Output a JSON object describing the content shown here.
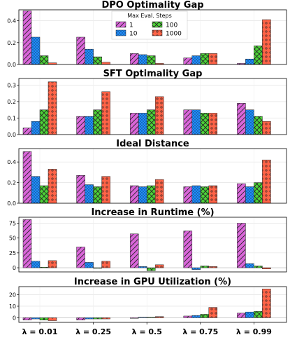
{
  "chart_data": [
    {
      "type": "bar",
      "title": "DPO Optimality Gap",
      "categories": [
        "λ = 0.01",
        "λ = 0.25",
        "λ = 0.5",
        "λ = 0.75",
        "λ = 0.99"
      ],
      "ylim": [
        0,
        0.5
      ],
      "yticks": [
        0,
        0.2,
        0.4
      ],
      "ytick_labels": [
        "0.0",
        "0.2",
        "0.4"
      ],
      "series": [
        {
          "name": "1",
          "values": [
            0.49,
            0.25,
            0.1,
            0.06,
            0.01
          ]
        },
        {
          "name": "10",
          "values": [
            0.25,
            0.14,
            0.09,
            0.08,
            0.05
          ]
        },
        {
          "name": "100",
          "values": [
            0.08,
            0.07,
            0.08,
            0.1,
            0.17
          ]
        },
        {
          "name": "1000",
          "values": [
            0.015,
            0.02,
            0.01,
            0.1,
            0.41
          ]
        }
      ],
      "legend": {
        "title": "Max Eval. Steps",
        "entries": [
          "1",
          "100",
          "10",
          "1000"
        ],
        "placement": "top-center"
      }
    },
    {
      "type": "bar",
      "title": "SFT Optimality Gap",
      "categories": [
        "λ = 0.01",
        "λ = 0.25",
        "λ = 0.5",
        "λ = 0.75",
        "λ = 0.99"
      ],
      "ylim": [
        0,
        0.34
      ],
      "yticks": [
        0,
        0.1,
        0.2,
        0.3
      ],
      "ytick_labels": [
        "0.0",
        "0.1",
        "0.2",
        "0.3"
      ],
      "series": [
        {
          "name": "1",
          "values": [
            0.04,
            0.11,
            0.13,
            0.15,
            0.19
          ]
        },
        {
          "name": "10",
          "values": [
            0.08,
            0.11,
            0.13,
            0.15,
            0.15
          ]
        },
        {
          "name": "100",
          "values": [
            0.15,
            0.15,
            0.15,
            0.13,
            0.11
          ]
        },
        {
          "name": "1000",
          "values": [
            0.32,
            0.26,
            0.23,
            0.13,
            0.08
          ]
        }
      ]
    },
    {
      "type": "bar",
      "title": "Ideal Distance",
      "categories": [
        "λ = 0.01",
        "λ = 0.25",
        "λ = 0.5",
        "λ = 0.75",
        "λ = 0.99"
      ],
      "ylim": [
        0,
        0.53
      ],
      "yticks": [
        0,
        0.2,
        0.4
      ],
      "ytick_labels": [
        "0.0",
        "0.2",
        "0.4"
      ],
      "series": [
        {
          "name": "1",
          "values": [
            0.5,
            0.27,
            0.17,
            0.16,
            0.19
          ]
        },
        {
          "name": "10",
          "values": [
            0.26,
            0.18,
            0.16,
            0.17,
            0.16
          ]
        },
        {
          "name": "100",
          "values": [
            0.17,
            0.16,
            0.17,
            0.16,
            0.2
          ]
        },
        {
          "name": "1000",
          "values": [
            0.33,
            0.26,
            0.23,
            0.17,
            0.42
          ]
        }
      ]
    },
    {
      "type": "bar",
      "title": "Increase in Runtime (%)",
      "categories": [
        "λ = 0.01",
        "λ = 0.25",
        "λ = 0.5",
        "λ = 0.75",
        "λ = 0.99"
      ],
      "ylim": [
        -7,
        85
      ],
      "yticks": [
        0,
        25,
        50,
        75
      ],
      "ytick_labels": [
        "0",
        "25",
        "50",
        "75"
      ],
      "series": [
        {
          "name": "1",
          "values": [
            81,
            35,
            57,
            62,
            75
          ]
        },
        {
          "name": "10",
          "values": [
            11,
            9,
            2,
            -3,
            7
          ]
        },
        {
          "name": "100",
          "values": [
            1,
            -1,
            -5,
            3,
            3
          ]
        },
        {
          "name": "1000",
          "values": [
            12,
            11,
            5,
            2,
            -2
          ]
        }
      ]
    },
    {
      "type": "bar",
      "title": "Increase in GPU Utilization (%)",
      "categories": [
        "λ = 0.01",
        "λ = 0.25",
        "λ = 0.5",
        "λ = 0.75",
        "λ = 0.99"
      ],
      "ylim": [
        -4,
        27
      ],
      "yticks": [
        0,
        10,
        20
      ],
      "ytick_labels": [
        "0",
        "10",
        "20"
      ],
      "series": [
        {
          "name": "1",
          "values": [
            -2,
            -2,
            -0.5,
            1.5,
            4
          ]
        },
        {
          "name": "10",
          "values": [
            -1,
            -1,
            0.5,
            2,
            5
          ]
        },
        {
          "name": "100",
          "values": [
            -2,
            -1,
            0.5,
            3,
            5.5
          ]
        },
        {
          "name": "1000",
          "values": [
            -2.5,
            -1,
            1,
            9,
            25
          ]
        }
      ]
    }
  ],
  "colors": {
    "1": "#d966d9",
    "10": "#1e90ff",
    "100": "#4cd137",
    "1000": "#ff6347"
  }
}
